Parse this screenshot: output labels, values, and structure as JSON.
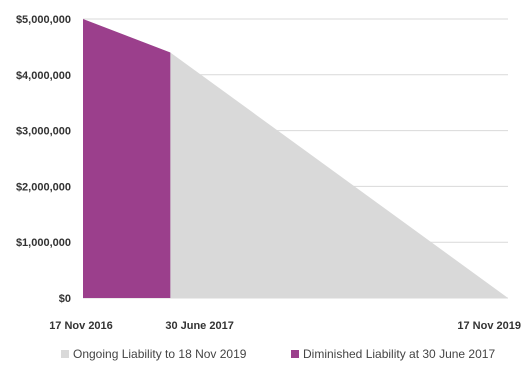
{
  "chart_data": {
    "type": "area",
    "x_tick_labels": [
      "17 Nov 2016",
      "30 June 2017",
      "17 Nov 2019"
    ],
    "y_tick_labels": [
      "$0",
      "$1,000,000",
      "$2,000,000",
      "$3,000,000",
      "$4,000,000",
      "$5,000,000"
    ],
    "ylim": [
      0,
      5000000
    ],
    "xlim": [
      "2016-11-17",
      "2019-11-17"
    ],
    "grid": true,
    "legend_position": "bottom",
    "series": [
      {
        "name": "Ongoing Liability to 18 Nov 2019",
        "color": "#d9d9d9",
        "x": [
          "2016-11-17",
          "2017-06-30",
          "2019-11-17"
        ],
        "y": [
          5000000,
          4400000,
          0
        ]
      },
      {
        "name": "Diminished Liability at 30 June 2017",
        "color": "#9b3f8c",
        "x": [
          "2016-11-17",
          "2017-06-30"
        ],
        "y": [
          5000000,
          4400000
        ]
      }
    ]
  }
}
